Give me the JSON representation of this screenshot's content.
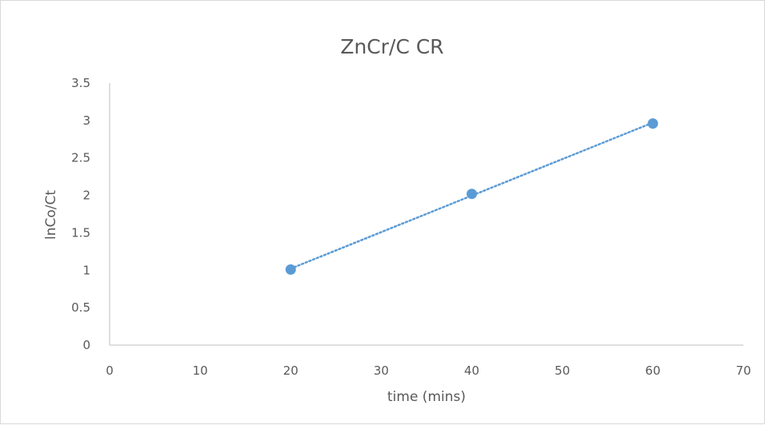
{
  "chart_data": {
    "type": "scatter",
    "title": "ZnCr/C CR",
    "xlabel": "time (mins)",
    "ylabel": "lnCo/Ct",
    "xlim": [
      0,
      70
    ],
    "ylim": [
      0,
      3.5
    ],
    "x_ticks": [
      "0",
      "10",
      "20",
      "30",
      "40",
      "50",
      "60",
      "70"
    ],
    "y_ticks": [
      "0",
      "0.5",
      "1",
      "1.5",
      "2",
      "2.5",
      "3",
      "3.5"
    ],
    "grid": false,
    "legend": "none",
    "trendline": "linear, dotted",
    "series": [
      {
        "x": [
          20,
          40,
          60
        ],
        "y": [
          1.01,
          2.02,
          2.96
        ]
      }
    ],
    "colors": {
      "series": "#5b9bd5",
      "axis": "#bfbfbf",
      "text": "#595959"
    }
  }
}
